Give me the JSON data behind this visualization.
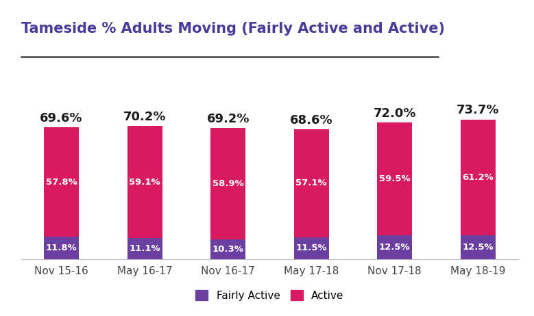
{
  "title": "Tameside % Adults Moving (Fairly Active and Active)",
  "categories": [
    "Nov 15-16",
    "May 16-17",
    "Nov 16-17",
    "May 17-18",
    "Nov 17-18",
    "May 18-19"
  ],
  "fairly_active": [
    11.8,
    11.1,
    10.3,
    11.5,
    12.5,
    12.5
  ],
  "active": [
    57.8,
    59.1,
    58.9,
    57.1,
    59.5,
    61.2
  ],
  "totals": [
    "69.6%",
    "70.2%",
    "69.2%",
    "68.6%",
    "72.0%",
    "73.7%"
  ],
  "active_labels": [
    "57.8%",
    "59.1%",
    "58.9%",
    "57.1%",
    "59.5%",
    "61.2%"
  ],
  "fairly_active_labels": [
    "11.8%",
    "11.1%",
    "10.3%",
    "11.5%",
    "12.5%",
    "12.5%"
  ],
  "color_fairly_active": "#6B3FA0",
  "color_active": "#D81B60",
  "background_color": "#ffffff",
  "title_color": "#4B3A9A",
  "title_fontsize": 15,
  "legend_labels": [
    "Fairly Active",
    "Active"
  ],
  "ylim": [
    0,
    90
  ],
  "bar_width": 0.42
}
